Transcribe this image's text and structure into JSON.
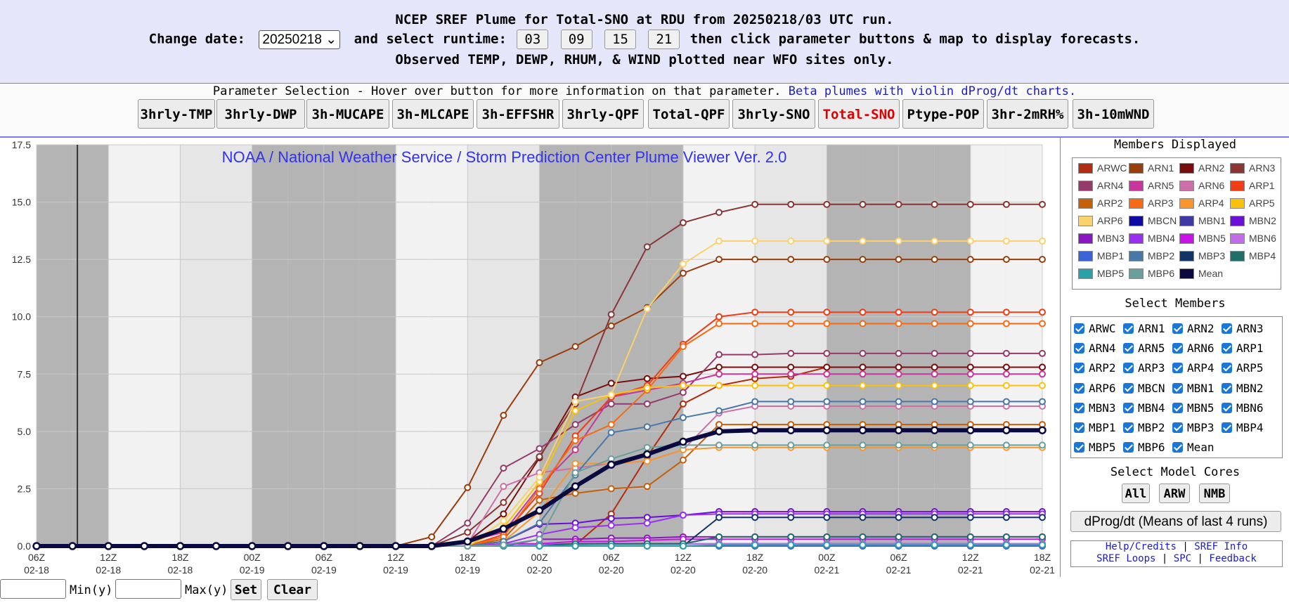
{
  "header": {
    "title": "NCEP SREF Plume for Total-SNO at RDU from 20250218/03 UTC run.",
    "change_date_label": "Change date:",
    "date_value": "20250218",
    "select_runtime_label": "and select runtime:",
    "runtimes": [
      "03",
      "09",
      "15",
      "21"
    ],
    "instruction": "then click parameter buttons & map to display forecasts.",
    "observed_note": "Observed TEMP, DEWP, RHUM, & WIND plotted near WFO sites only."
  },
  "parameter_bar": {
    "help_text": "Parameter Selection - Hover over button for more information on that parameter.",
    "beta_link": "Beta plumes with violin dProg/dt charts.",
    "buttons": [
      "3hrly-TMP",
      "3hrly-DWP",
      "3h-MUCAPE",
      "3h-MLCAPE",
      "3h-EFFSHR",
      "3hrly-QPF",
      "Total-QPF",
      "3hrly-SNO",
      "Total-SNO",
      "Ptype-POP",
      "3hr-2mRH%",
      "3h-10mWND"
    ],
    "active": "Total-SNO"
  },
  "sidebar": {
    "members_displayed_title": "Members Displayed",
    "select_members_title": "Select Members",
    "select_cores_title": "Select Model Cores",
    "core_buttons": [
      "All",
      "ARW",
      "NMB"
    ],
    "dprog_button": "dProg/dt (Means of last 4 runs)",
    "links": {
      "help": "Help/Credits",
      "sref_info": "SREF Info",
      "sref_loops": "SREF Loops",
      "spc": "SPC",
      "feedback": "Feedback",
      "sep": "|"
    }
  },
  "bottom": {
    "min_label": "Min(y)",
    "max_label": "Max(y)",
    "set_button": "Set",
    "clear_button": "Clear"
  },
  "chart_data": {
    "type": "line",
    "watermark": "NOAA / National Weather Service / Storm Prediction Center Plume Viewer Ver. 2.0",
    "x_labels": [
      [
        "06Z",
        "02-18"
      ],
      [
        "12Z",
        "02-18"
      ],
      [
        "18Z",
        "02-18"
      ],
      [
        "00Z",
        "02-19"
      ],
      [
        "06Z",
        "02-19"
      ],
      [
        "12Z",
        "02-19"
      ],
      [
        "18Z",
        "02-19"
      ],
      [
        "00Z",
        "02-20"
      ],
      [
        "06Z",
        "02-20"
      ],
      [
        "12Z",
        "02-20"
      ],
      [
        "18Z",
        "02-20"
      ],
      [
        "00Z",
        "02-21"
      ],
      [
        "06Z",
        "02-21"
      ],
      [
        "12Z",
        "02-21"
      ],
      [
        "18Z",
        "02-21"
      ]
    ],
    "ylim": [
      0,
      17.5
    ],
    "y_ticks": [
      "0.0",
      "2.5",
      "5.0",
      "7.5",
      "10.0",
      "12.5",
      "15.0",
      "17.5"
    ],
    "night_bands_colors": {
      "dark": "#b4b4b4",
      "mid": "#d3d3d3",
      "light": "#e6e6e6"
    },
    "series": [
      {
        "name": "ARWC",
        "color": "#b22c0e",
        "values": [
          0,
          0,
          0,
          0,
          0,
          0,
          0,
          0,
          0,
          0,
          0,
          0,
          0,
          0,
          0,
          0.05,
          1.4,
          3.9,
          6.2,
          7.0,
          7.3,
          7.4,
          7.8,
          7.8,
          7.8,
          7.8,
          7.8,
          7.8,
          7.8
        ]
      },
      {
        "name": "ARN1",
        "color": "#9a3d0c",
        "values": [
          0,
          0,
          0,
          0,
          0,
          0,
          0,
          0,
          0,
          0,
          0,
          0.4,
          2.55,
          5.7,
          8.0,
          8.7,
          9.6,
          10.4,
          11.9,
          12.5,
          12.5,
          12.5,
          12.5,
          12.5,
          12.5,
          12.5,
          12.5,
          12.5,
          12.5
        ]
      },
      {
        "name": "ARN2",
        "color": "#7a0d0d",
        "values": [
          0,
          0,
          0,
          0,
          0,
          0,
          0,
          0,
          0,
          0,
          0,
          0,
          0.2,
          1.4,
          3.85,
          6.5,
          7.1,
          7.3,
          7.4,
          7.8,
          7.8,
          7.8,
          7.8,
          7.8,
          7.8,
          7.8,
          7.8,
          7.8,
          7.8
        ]
      },
      {
        "name": "ARN3",
        "color": "#8b3535",
        "values": [
          0,
          0,
          0,
          0,
          0,
          0,
          0,
          0,
          0,
          0,
          0,
          0,
          0.6,
          1.9,
          3.9,
          6.2,
          10.1,
          13.05,
          14.1,
          14.55,
          14.9,
          14.9,
          14.9,
          14.9,
          14.9,
          14.9,
          14.9,
          14.9,
          14.9
        ]
      },
      {
        "name": "ARN4",
        "color": "#953a6a",
        "values": [
          0,
          0,
          0,
          0,
          0,
          0,
          0,
          0,
          0,
          0,
          0,
          0,
          1.0,
          3.4,
          4.25,
          5.3,
          6.2,
          6.2,
          6.7,
          8.35,
          8.35,
          8.4,
          8.4,
          8.4,
          8.4,
          8.4,
          8.4,
          8.4,
          8.4
        ]
      },
      {
        "name": "ARN5",
        "color": "#c7369a",
        "values": [
          0,
          0,
          0,
          0,
          0,
          0,
          0,
          0,
          0,
          0,
          0,
          0,
          0.2,
          0.6,
          2.6,
          4.2,
          6.5,
          6.8,
          7.1,
          7.5,
          7.5,
          7.5,
          7.5,
          7.5,
          7.5,
          7.5,
          7.5,
          7.5,
          7.5
        ]
      },
      {
        "name": "ARN6",
        "color": "#cc6fa8",
        "values": [
          0,
          0,
          0,
          0,
          0,
          0,
          0,
          0,
          0,
          0,
          0,
          0,
          0.1,
          2.6,
          3.2,
          3.4,
          3.6,
          3.7,
          4.2,
          5.8,
          6.1,
          6.1,
          6.1,
          6.1,
          6.1,
          6.1,
          6.1,
          6.1,
          6.1
        ]
      },
      {
        "name": "ARP1",
        "color": "#ef3d17",
        "values": [
          0,
          0,
          0,
          0,
          0,
          0,
          0,
          0,
          0,
          0,
          0,
          0,
          0,
          0.5,
          2.3,
          4.8,
          6.5,
          7.0,
          8.8,
          10.0,
          10.2,
          10.2,
          10.2,
          10.2,
          10.2,
          10.2,
          10.2,
          10.2,
          10.2
        ]
      },
      {
        "name": "ARP2",
        "color": "#c5600a",
        "values": [
          0,
          0,
          0,
          0,
          0,
          0,
          0,
          0,
          0,
          0,
          0,
          0,
          0,
          0.3,
          2.0,
          2.3,
          2.5,
          2.6,
          3.75,
          5.3,
          5.3,
          5.3,
          5.3,
          5.3,
          5.3,
          5.3,
          5.3,
          5.3,
          5.3
        ]
      },
      {
        "name": "ARP3",
        "color": "#f56a12",
        "values": [
          0,
          0,
          0,
          0,
          0,
          0,
          0,
          0,
          0,
          0,
          0,
          0,
          0,
          0.4,
          2.5,
          4.6,
          5.3,
          6.8,
          8.7,
          9.7,
          9.7,
          9.7,
          9.7,
          9.7,
          9.7,
          9.7,
          9.7,
          9.7,
          9.7
        ]
      },
      {
        "name": "ARP4",
        "color": "#f7962d",
        "values": [
          0,
          0,
          0,
          0,
          0,
          0,
          0,
          0,
          0,
          0,
          0,
          0,
          0,
          0.2,
          1.5,
          3.6,
          3.6,
          3.7,
          4.2,
          4.3,
          4.3,
          4.3,
          4.3,
          4.3,
          4.3,
          4.3,
          4.3,
          4.3,
          4.3
        ]
      },
      {
        "name": "ARP5",
        "color": "#f9c10a",
        "values": [
          0,
          0,
          0,
          0,
          0,
          0,
          0,
          0,
          0,
          0,
          0,
          0,
          0,
          0.8,
          2.8,
          5.9,
          6.6,
          6.9,
          7.0,
          7.0,
          7.0,
          7.0,
          7.0,
          7.0,
          7.0,
          7.0,
          7.0,
          7.0,
          7.0
        ]
      },
      {
        "name": "ARP6",
        "color": "#fad16a",
        "values": [
          0,
          0,
          0,
          0,
          0,
          0,
          0,
          0,
          0,
          0,
          0,
          0,
          0,
          1.1,
          3.0,
          6.3,
          6.6,
          10.35,
          12.3,
          13.3,
          13.3,
          13.3,
          13.3,
          13.3,
          13.3,
          13.3,
          13.3,
          13.3,
          13.3
        ]
      },
      {
        "name": "MBCN",
        "color": "#0f0aa0",
        "values": [
          0,
          0,
          0,
          0,
          0,
          0,
          0,
          0,
          0,
          0,
          0,
          0,
          0,
          0,
          0,
          0,
          0,
          0,
          0,
          0,
          0,
          0,
          0,
          0,
          0,
          0,
          0,
          0,
          0
        ]
      },
      {
        "name": "MBN1",
        "color": "#3d3aa6",
        "values": [
          0,
          0,
          0,
          0,
          0,
          0,
          0,
          0,
          0,
          0,
          0,
          0,
          0,
          0,
          0.05,
          0.1,
          0.1,
          0.1,
          0.1,
          0.1,
          0.1,
          0.1,
          0.1,
          0.1,
          0.1,
          0.1,
          0.1,
          0.1,
          0.1
        ]
      },
      {
        "name": "MBN2",
        "color": "#6a0fd4",
        "values": [
          0,
          0,
          0,
          0,
          0,
          0,
          0,
          0,
          0,
          0,
          0,
          0,
          0,
          0.2,
          0.95,
          1.0,
          1.2,
          1.25,
          1.35,
          1.5,
          1.5,
          1.5,
          1.5,
          1.5,
          1.5,
          1.5,
          1.5,
          1.5,
          1.5
        ]
      },
      {
        "name": "MBN3",
        "color": "#8a18c2",
        "values": [
          0,
          0,
          0,
          0,
          0,
          0,
          0,
          0,
          0,
          0,
          0,
          0,
          0,
          0,
          0.3,
          0.3,
          0.35,
          0.35,
          0.4,
          0.4,
          0.4,
          0.4,
          0.4,
          0.4,
          0.4,
          0.4,
          0.4,
          0.4,
          0.4
        ]
      },
      {
        "name": "MBN4",
        "color": "#9b2ff0",
        "values": [
          0,
          0,
          0,
          0,
          0,
          0,
          0,
          0,
          0,
          0,
          0,
          0,
          0,
          0.1,
          0.5,
          0.8,
          0.9,
          1.0,
          1.35,
          1.4,
          1.4,
          1.4,
          1.4,
          1.4,
          1.4,
          1.4,
          1.4,
          1.4,
          1.4
        ]
      },
      {
        "name": "MBN5",
        "color": "#c814e6",
        "values": [
          0,
          0,
          0,
          0,
          0,
          0,
          0,
          0,
          0,
          0,
          0,
          0,
          0,
          0.1,
          0.1,
          0.2,
          0.2,
          0.25,
          0.3,
          0.3,
          0.3,
          0.3,
          0.3,
          0.3,
          0.3,
          0.3,
          0.3,
          0.3,
          0.3
        ]
      },
      {
        "name": "MBN6",
        "color": "#c36be8",
        "values": [
          0,
          0,
          0,
          0,
          0,
          0,
          0,
          0,
          0,
          0,
          0,
          0,
          0,
          0,
          0.05,
          0.05,
          0.1,
          0.1,
          0.1,
          0.1,
          0.1,
          0.1,
          0.1,
          0.1,
          0.1,
          0.1,
          0.1,
          0.1,
          0.1
        ]
      },
      {
        "name": "MBP1",
        "color": "#3a64d6",
        "values": [
          0,
          0,
          0,
          0,
          0,
          0,
          0,
          0,
          0,
          0,
          0,
          0,
          0,
          0,
          0,
          0,
          0,
          0,
          0,
          0,
          0,
          0,
          0,
          0,
          0,
          0,
          0,
          0,
          0
        ]
      },
      {
        "name": "MBP2",
        "color": "#4778a8",
        "values": [
          0,
          0,
          0,
          0,
          0,
          0,
          0,
          0,
          0,
          0,
          0,
          0,
          0,
          0.2,
          1.0,
          3.1,
          4.95,
          5.2,
          5.6,
          5.9,
          6.3,
          6.3,
          6.3,
          6.3,
          6.3,
          6.3,
          6.3,
          6.3,
          6.3
        ]
      },
      {
        "name": "MBP3",
        "color": "#123466",
        "values": [
          0,
          0,
          0,
          0,
          0,
          0,
          0,
          0,
          0,
          0,
          0,
          0,
          0,
          0,
          0,
          0,
          0,
          0,
          0,
          1.25,
          1.25,
          1.25,
          1.25,
          1.25,
          1.25,
          1.25,
          1.25,
          1.25,
          1.25
        ]
      },
      {
        "name": "MBP4",
        "color": "#1f6e6a",
        "values": [
          0,
          0,
          0,
          0,
          0,
          0,
          0,
          0,
          0,
          0,
          0,
          0,
          0,
          0,
          0,
          0.1,
          0.1,
          0.1,
          0.1,
          0.4,
          0.4,
          0.4,
          0.4,
          0.4,
          0.4,
          0.4,
          0.4,
          0.4,
          0.4
        ]
      },
      {
        "name": "MBP5",
        "color": "#2aa0a8",
        "values": [
          0,
          0,
          0,
          0,
          0,
          0,
          0,
          0,
          0,
          0,
          0,
          0,
          0,
          0,
          0,
          0,
          0,
          0,
          0,
          0.05,
          0.05,
          0.05,
          0.05,
          0.05,
          0.05,
          0.05,
          0.05,
          0.05,
          0.05
        ]
      },
      {
        "name": "MBP6",
        "color": "#6aa09c",
        "values": [
          0,
          0,
          0,
          0,
          0,
          0,
          0,
          0,
          0,
          0,
          0,
          0,
          0,
          0.05,
          0.3,
          3.2,
          3.8,
          4.3,
          4.4,
          4.4,
          4.4,
          4.4,
          4.4,
          4.4,
          4.4,
          4.4,
          4.4,
          4.4,
          4.4
        ]
      },
      {
        "name": "Mean",
        "color": "#0a0a40",
        "values": [
          0,
          0,
          0,
          0,
          0,
          0,
          0,
          0,
          0,
          0,
          0,
          0,
          0.2,
          0.75,
          1.55,
          2.6,
          3.55,
          4.0,
          4.55,
          5.0,
          5.05,
          5.05,
          5.05,
          5.05,
          5.05,
          5.05,
          5.05,
          5.05,
          5.05
        ]
      }
    ]
  }
}
